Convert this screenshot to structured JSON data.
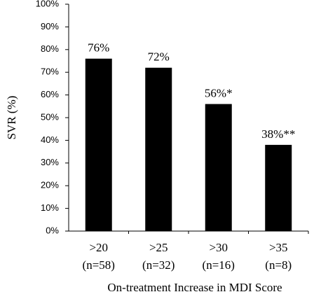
{
  "chart_data": {
    "type": "bar",
    "y_label": "SVR (%)",
    "x_label": "On-treatment Increase in MDI Score",
    "categories": [
      [
        ">20",
        "(n=58)"
      ],
      [
        ">25",
        "(n=32)"
      ],
      [
        ">30",
        "(n=16)"
      ],
      [
        ">35",
        "(n=8)"
      ]
    ],
    "values": [
      76,
      72,
      56,
      38
    ],
    "value_labels": [
      "76%",
      "72%",
      "56%*",
      "38%**"
    ],
    "color": "#000000",
    "ylim": [
      0,
      100
    ],
    "yticks": [
      {
        "value": 0,
        "label": "0%"
      },
      {
        "value": 10,
        "label": "10%"
      },
      {
        "value": 20,
        "label": "20%"
      },
      {
        "value": 30,
        "label": "30%"
      },
      {
        "value": 40,
        "label": "40%"
      },
      {
        "value": 50,
        "label": "50%"
      },
      {
        "value": 60,
        "label": "60%"
      },
      {
        "value": 70,
        "label": "70%"
      },
      {
        "value": 80,
        "label": "80%"
      },
      {
        "value": 90,
        "label": "90%"
      },
      {
        "value": 100,
        "label": "100%"
      }
    ],
    "grid": false
  }
}
